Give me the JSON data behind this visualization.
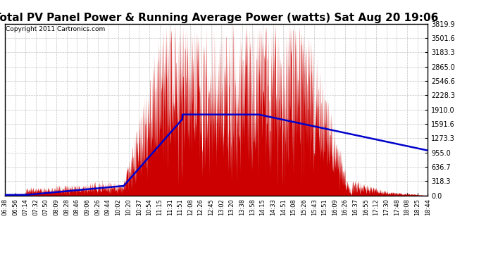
{
  "title": "Total PV Panel Power & Running Average Power (watts) Sat Aug 20 19:06",
  "copyright": "Copyright 2011 Cartronics.com",
  "ymax": 3819.9,
  "yticks": [
    0.0,
    318.3,
    636.7,
    955.0,
    1273.3,
    1591.6,
    1910.0,
    2228.3,
    2546.6,
    2865.0,
    3183.3,
    3501.6,
    3819.9
  ],
  "bg_color": "#ffffff",
  "grid_color": "#aaaaaa",
  "bar_color": "#cc0000",
  "avg_color": "#0000cc",
  "title_fontsize": 11,
  "copyright_fontsize": 6.5,
  "tick_labels": [
    "06:38",
    "06:56",
    "07:14",
    "07:32",
    "07:50",
    "08:09",
    "08:28",
    "08:46",
    "09:06",
    "09:26",
    "09:44",
    "10:02",
    "10:20",
    "10:37",
    "10:54",
    "11:15",
    "11:31",
    "11:51",
    "12:08",
    "12:26",
    "12:45",
    "13:02",
    "13:20",
    "13:38",
    "13:58",
    "14:15",
    "14:33",
    "14:51",
    "15:08",
    "15:26",
    "15:43",
    "15:51",
    "16:09",
    "16:26",
    "16:37",
    "16:55",
    "17:12",
    "17:30",
    "17:48",
    "18:08",
    "18:25",
    "18:44"
  ]
}
